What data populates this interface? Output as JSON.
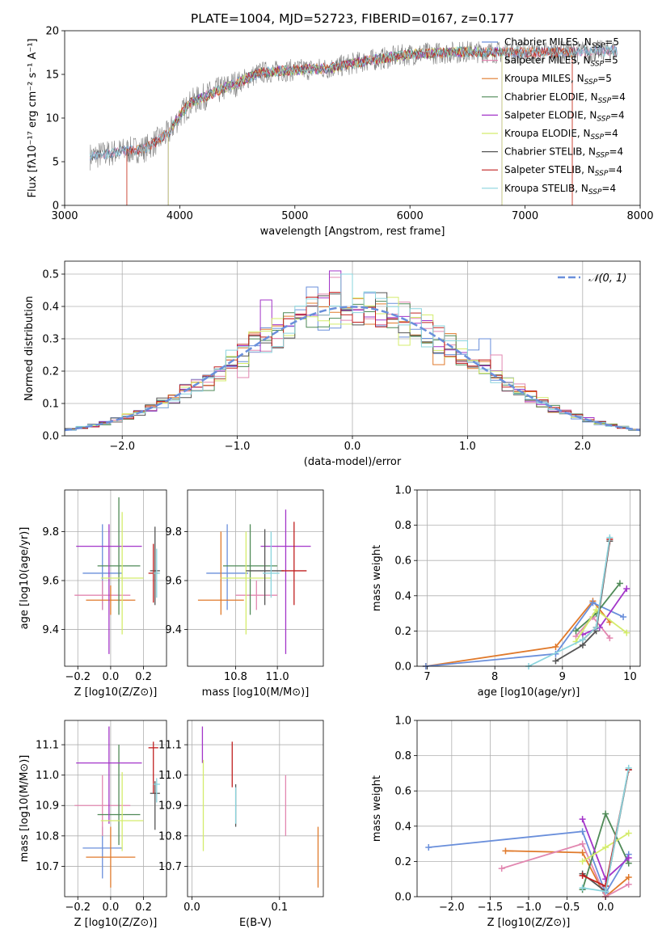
{
  "figure": {
    "title": "PLATE=1004, MJD=52723, FIBERID=0167, z=0.177"
  },
  "palette": {
    "spectrum": "#808080",
    "chabrier_miles": "#6a8fdb",
    "salpeter_miles": "#e287b0",
    "kroupa_miles": "#e07a2c",
    "chabrier_elodie": "#4f8a57",
    "salpeter_elodie": "#a335c9",
    "kroupa_elodie": "#d4ec6c",
    "chabrier_stelib": "#555555",
    "salpeter_stelib": "#c02020",
    "kroupa_stelib": "#8ad4dd",
    "gaussian": "#6a8fdb"
  },
  "legend_models": [
    {
      "key": "chabrier_miles",
      "text": "Chabrier MILES, N",
      "sub": "SSP",
      "tail": "=5"
    },
    {
      "key": "salpeter_miles",
      "text": "Salpeter MILES, N",
      "sub": "SSP",
      "tail": "=5"
    },
    {
      "key": "kroupa_miles",
      "text": "Kroupa MILES, N",
      "sub": "SSP",
      "tail": "=5"
    },
    {
      "key": "chabrier_elodie",
      "text": "Chabrier ELODIE, N",
      "sub": "SSP",
      "tail": "=4"
    },
    {
      "key": "salpeter_elodie",
      "text": "Salpeter ELODIE, N",
      "sub": "SSP",
      "tail": "=4"
    },
    {
      "key": "kroupa_elodie",
      "text": "Kroupa ELODIE, N",
      "sub": "SSP",
      "tail": "=4"
    },
    {
      "key": "chabrier_stelib",
      "text": "Chabrier STELIB, N",
      "sub": "SSP",
      "tail": "=4"
    },
    {
      "key": "salpeter_stelib",
      "text": "Salpeter STELIB, N",
      "sub": "SSP",
      "tail": "=4"
    },
    {
      "key": "kroupa_stelib",
      "text": "Kroupa STELIB, N",
      "sub": "SSP",
      "tail": "=4"
    }
  ],
  "chart_data": [
    {
      "id": "spectrum",
      "type": "line",
      "xlabel": "wavelength [Angstrom, rest frame]",
      "ylabel": "Flux [fλ10⁻¹⁷ erg cm⁻² s⁻¹ A⁻¹]",
      "xlim": [
        3000,
        8000
      ],
      "ylim": [
        0,
        20
      ],
      "xticks": [
        3000,
        4000,
        5000,
        6000,
        7000,
        8000
      ],
      "yticks": [
        0,
        5,
        10,
        15,
        20
      ],
      "legend": "top-right",
      "grid": false,
      "data_start": 3220,
      "data_end": 7800,
      "continuum": [
        [
          3220,
          5.6
        ],
        [
          3500,
          6.2
        ],
        [
          3700,
          6.5
        ],
        [
          3900,
          8.2
        ],
        [
          4000,
          10.3
        ],
        [
          4100,
          11.8
        ],
        [
          4400,
          13.5
        ],
        [
          4700,
          15.2
        ],
        [
          5000,
          15.5
        ],
        [
          5300,
          15.7
        ],
        [
          5600,
          16.5
        ],
        [
          6000,
          17.3
        ],
        [
          6500,
          17.6
        ],
        [
          7000,
          17.5
        ],
        [
          7500,
          17.6
        ],
        [
          7800,
          17.7
        ]
      ],
      "model_cutoffs": [
        {
          "key": "kroupa_miles",
          "start": 3540,
          "end": 7410
        },
        {
          "key": "salpeter_stelib",
          "start": 3540,
          "end": 7410
        },
        {
          "key": "kroupa_elodie",
          "start": 3900,
          "end": 6800
        },
        {
          "key": "salpeter_elodie",
          "start": 3900,
          "end": 6800
        },
        {
          "key": "chabrier_elodie",
          "start": 3900,
          "end": 6800
        }
      ]
    },
    {
      "id": "residuals",
      "type": "histogram",
      "xlabel": "(data-model)/error",
      "ylabel": "Normed distribution",
      "xlim": [
        -2.5,
        2.5
      ],
      "ylim": [
        0,
        0.54
      ],
      "xticks": [
        -2,
        -1,
        0,
        1,
        2
      ],
      "yticks": [
        0.0,
        0.1,
        0.2,
        0.3,
        0.4,
        0.5
      ],
      "grid": true,
      "bin_width": 0.1,
      "gaussian_label": "𝒩(0, 1)",
      "spike_bins": [
        {
          "key": "chabrier_miles",
          "x": -0.4,
          "height": 0.46
        },
        {
          "key": "salpeter_elodie",
          "x": -0.2,
          "height": 0.51
        },
        {
          "key": "salpeter_miles",
          "x": -0.2,
          "height": 0.49
        },
        {
          "key": "kroupa_stelib",
          "x": -0.1,
          "height": 0.5
        },
        {
          "key": "chabrier_miles",
          "x": -0.1,
          "height": 0.5
        },
        {
          "key": "salpeter_elodie",
          "x": -0.8,
          "height": 0.42
        },
        {
          "key": "salpeter_miles",
          "x": -1.0,
          "height": 0.18
        },
        {
          "key": "chabrier_miles",
          "x": 0.2,
          "height": 0.34
        },
        {
          "key": "kroupa_elodie",
          "x": 0.4,
          "height": 0.28
        },
        {
          "key": "chabrier_miles",
          "x": 1.1,
          "height": 0.3
        },
        {
          "key": "kroupa_miles",
          "x": 0.7,
          "height": 0.22
        },
        {
          "key": "salpeter_miles",
          "x": 1.2,
          "height": 0.25
        },
        {
          "key": "kroupa_elodie",
          "x": -1.2,
          "height": 0.17
        },
        {
          "key": "chabrier_elodie",
          "x": -1.3,
          "height": 0.14
        }
      ]
    },
    {
      "id": "z_age",
      "type": "errorbar",
      "xlabel": "Z [log10(Z/Z⊙)]",
      "ylabel": "age  [log10(age/yr)]",
      "xlim": [
        -0.28,
        0.34
      ],
      "ylim": [
        9.25,
        9.97
      ],
      "xticks": [
        -0.2,
        0.0,
        0.2
      ],
      "yticks": [
        9.4,
        9.6,
        9.8
      ],
      "grid": true,
      "points": [
        {
          "key": "chabrier_miles",
          "x": -0.05,
          "xerr": 0.12,
          "y": 9.63,
          "yerr": [
            0.15,
            0.2
          ]
        },
        {
          "key": "salpeter_miles",
          "x": -0.05,
          "xerr": 0.17,
          "y": 9.54,
          "yerr": [
            0.06,
            0.06
          ]
        },
        {
          "key": "kroupa_miles",
          "x": 0.0,
          "xerr": 0.15,
          "y": 9.52,
          "yerr": [
            0.06,
            0.06
          ]
        },
        {
          "key": "chabrier_elodie",
          "x": 0.05,
          "xerr": 0.13,
          "y": 9.66,
          "yerr": [
            0.2,
            0.28
          ]
        },
        {
          "key": "salpeter_elodie",
          "x": -0.01,
          "xerr": 0.2,
          "y": 9.74,
          "yerr": [
            0.44,
            0.09
          ]
        },
        {
          "key": "kroupa_elodie",
          "x": 0.07,
          "xerr": 0.13,
          "y": 9.61,
          "yerr": [
            0.23,
            0.27
          ]
        },
        {
          "key": "chabrier_stelib",
          "x": 0.27,
          "xerr": 0.03,
          "y": 9.64,
          "yerr": [
            0.14,
            0.18
          ]
        },
        {
          "key": "salpeter_stelib",
          "x": 0.26,
          "xerr": 0.03,
          "y": 9.63,
          "yerr": [
            0.12,
            0.12
          ]
        },
        {
          "key": "kroupa_stelib",
          "x": 0.28,
          "xerr": 0.02,
          "y": 9.63,
          "yerr": [
            0.1,
            0.1
          ]
        }
      ]
    },
    {
      "id": "mass_age",
      "type": "errorbar",
      "xlabel": "mass [log10(M/M⊙)]",
      "ylabel": "",
      "xlim": [
        10.57,
        11.22
      ],
      "ylim": [
        9.25,
        9.97
      ],
      "xticks": [
        10.8,
        11.0
      ],
      "yticks": [
        9.4,
        9.6,
        9.8
      ],
      "grid": true,
      "points": [
        {
          "key": "chabrier_miles",
          "x": 10.76,
          "xerr": 0.1,
          "y": 9.63,
          "yerr": [
            0.15,
            0.2
          ]
        },
        {
          "key": "salpeter_miles",
          "x": 10.9,
          "xerr": 0.1,
          "y": 9.54,
          "yerr": [
            0.06,
            0.06
          ]
        },
        {
          "key": "kroupa_miles",
          "x": 10.73,
          "xerr": 0.11,
          "y": 9.52,
          "yerr": [
            0.06,
            0.28
          ]
        },
        {
          "key": "chabrier_elodie",
          "x": 10.87,
          "xerr": 0.13,
          "y": 9.66,
          "yerr": [
            0.2,
            0.17
          ]
        },
        {
          "key": "salpeter_elodie",
          "x": 11.04,
          "xerr": 0.12,
          "y": 9.74,
          "yerr": [
            0.44,
            0.15
          ]
        },
        {
          "key": "kroupa_elodie",
          "x": 10.85,
          "xerr": 0.12,
          "y": 9.61,
          "yerr": [
            0.23,
            0.19
          ]
        },
        {
          "key": "chabrier_stelib",
          "x": 10.94,
          "xerr": 0.09,
          "y": 9.64,
          "yerr": [
            0.14,
            0.17
          ]
        },
        {
          "key": "salpeter_stelib",
          "x": 11.08,
          "xerr": 0.06,
          "y": 9.64,
          "yerr": [
            0.14,
            0.2
          ]
        },
        {
          "key": "kroupa_stelib",
          "x": 10.97,
          "xerr": 0.04,
          "y": 9.63,
          "yerr": [
            0.1,
            0.17
          ]
        }
      ]
    },
    {
      "id": "z_mass",
      "type": "errorbar",
      "xlabel": "Z [log10(Z/Z⊙)]",
      "ylabel": "mass [log10(M/M⊙)]",
      "xlim": [
        -0.28,
        0.34
      ],
      "ylim": [
        10.6,
        11.18
      ],
      "xticks": [
        -0.2,
        0.0,
        0.2
      ],
      "yticks": [
        10.7,
        10.8,
        10.9,
        11.0,
        11.1
      ],
      "grid": true,
      "points": [
        {
          "key": "chabrier_miles",
          "x": -0.05,
          "xerr": 0.12,
          "y": 10.76,
          "yerr": [
            0.1,
            0.07
          ]
        },
        {
          "key": "salpeter_miles",
          "x": -0.05,
          "xerr": 0.17,
          "y": 10.9,
          "yerr": [
            0.1,
            0.1
          ]
        },
        {
          "key": "kroupa_miles",
          "x": 0.0,
          "xerr": 0.15,
          "y": 10.73,
          "yerr": [
            0.1,
            0.1
          ]
        },
        {
          "key": "chabrier_elodie",
          "x": 0.05,
          "xerr": 0.13,
          "y": 10.87,
          "yerr": [
            0.1,
            0.23
          ]
        },
        {
          "key": "salpeter_elodie",
          "x": -0.01,
          "xerr": 0.2,
          "y": 11.04,
          "yerr": [
            0.2,
            0.12
          ]
        },
        {
          "key": "kroupa_elodie",
          "x": 0.07,
          "xerr": 0.13,
          "y": 10.85,
          "yerr": [
            0.1,
            0.16
          ]
        },
        {
          "key": "chabrier_stelib",
          "x": 0.27,
          "xerr": 0.03,
          "y": 10.94,
          "yerr": [
            0.12,
            0.04
          ]
        },
        {
          "key": "salpeter_stelib",
          "x": 0.26,
          "xerr": 0.03,
          "y": 11.09,
          "yerr": [
            0.15,
            0.02
          ]
        },
        {
          "key": "kroupa_stelib",
          "x": 0.28,
          "xerr": 0.02,
          "y": 10.97,
          "yerr": [
            0.06,
            0.02
          ]
        }
      ]
    },
    {
      "id": "ebv_mass",
      "type": "errorbar",
      "xlabel": "E(B-V)",
      "ylabel": "",
      "xlim": [
        -0.005,
        0.15
      ],
      "ylim": [
        10.6,
        11.18
      ],
      "xticks": [
        0.0,
        0.1
      ],
      "yticks": [
        10.7,
        10.8,
        10.9,
        11.0,
        11.1
      ],
      "grid": true,
      "points": [
        {
          "key": "salpeter_elodie",
          "x": 0.012,
          "xerr": 0,
          "y": 11.1,
          "yerr": [
            0.06,
            0.06
          ]
        },
        {
          "key": "kroupa_elodie",
          "x": 0.013,
          "xerr": 0,
          "y": 10.9,
          "yerr": [
            0.15,
            0.15
          ]
        },
        {
          "key": "salpeter_stelib",
          "x": 0.046,
          "xerr": 0,
          "y": 11.03,
          "yerr": [
            0.07,
            0.08
          ]
        },
        {
          "key": "chabrier_stelib",
          "x": 0.05,
          "xerr": 0,
          "y": 10.9,
          "yerr": [
            0.07,
            0.07
          ]
        },
        {
          "key": "kroupa_stelib",
          "x": 0.05,
          "xerr": 0,
          "y": 10.9,
          "yerr": [
            0.06,
            0.06
          ]
        },
        {
          "key": "salpeter_miles",
          "x": 0.107,
          "xerr": 0,
          "y": 10.9,
          "yerr": [
            0.1,
            0.1
          ]
        },
        {
          "key": "kroupa_miles",
          "x": 0.144,
          "xerr": 0,
          "y": 10.73,
          "yerr": [
            0.1,
            0.1
          ]
        }
      ]
    },
    {
      "id": "age_weight",
      "type": "line",
      "xlabel": "age  [log10(age/yr)]",
      "ylabel": "mass weight",
      "xlim": [
        6.85,
        10.15
      ],
      "ylim": [
        0,
        1.0
      ],
      "xticks": [
        7,
        8,
        9,
        10
      ],
      "yticks": [
        0.0,
        0.2,
        0.4,
        0.6,
        0.8,
        1.0
      ],
      "grid": true,
      "series": [
        {
          "key": "kroupa_miles",
          "x": [
            6.98,
            8.9,
            9.45,
            9.7
          ],
          "y": [
            0.0,
            0.11,
            0.37,
            0.25
          ]
        },
        {
          "key": "chabrier_miles",
          "x": [
            6.98,
            8.9,
            9.45,
            9.9
          ],
          "y": [
            0.0,
            0.07,
            0.36,
            0.28
          ]
        },
        {
          "key": "salpeter_miles",
          "x": [
            9.2,
            9.45,
            9.7
          ],
          "y": [
            0.17,
            0.28,
            0.16
          ]
        },
        {
          "key": "chabrier_elodie",
          "x": [
            9.2,
            9.5,
            9.85
          ],
          "y": [
            0.2,
            0.3,
            0.47
          ]
        },
        {
          "key": "salpeter_elodie",
          "x": [
            9.3,
            9.55,
            9.95
          ],
          "y": [
            0.18,
            0.22,
            0.44
          ]
        },
        {
          "key": "kroupa_elodie",
          "x": [
            9.2,
            9.5,
            9.95
          ],
          "y": [
            0.14,
            0.32,
            0.19
          ]
        },
        {
          "key": "chabrier_stelib",
          "x": [
            8.9,
            9.3,
            9.5,
            9.7
          ],
          "y": [
            0.03,
            0.12,
            0.2,
            0.71
          ]
        },
        {
          "key": "salpeter_stelib",
          "x": [
            9.3,
            9.5,
            9.7
          ],
          "y": [
            0.15,
            0.22,
            0.72
          ]
        },
        {
          "key": "kroupa_stelib",
          "x": [
            8.5,
            9.3,
            9.5,
            9.7
          ],
          "y": [
            0.0,
            0.15,
            0.22,
            0.73
          ]
        }
      ]
    },
    {
      "id": "z_weight",
      "type": "line",
      "xlabel": "Z [log10(Z/Z⊙)]",
      "ylabel": "mass weight",
      "xlim": [
        -2.45,
        0.45
      ],
      "ylim": [
        0,
        1.0
      ],
      "xticks": [
        -2.0,
        -1.5,
        -1.0,
        -0.5,
        0.0
      ],
      "yticks": [
        0.0,
        0.2,
        0.4,
        0.6,
        0.8,
        1.0
      ],
      "grid": true,
      "series": [
        {
          "key": "chabrier_miles",
          "x": [
            -2.3,
            -0.3,
            0.0,
            0.3
          ],
          "y": [
            0.28,
            0.37,
            0.02,
            0.24
          ]
        },
        {
          "key": "kroupa_miles",
          "x": [
            -1.3,
            -0.3,
            0.0,
            0.3
          ],
          "y": [
            0.26,
            0.25,
            0.0,
            0.11
          ]
        },
        {
          "key": "salpeter_miles",
          "x": [
            -1.35,
            -0.3,
            0.0,
            0.3
          ],
          "y": [
            0.16,
            0.3,
            0.0,
            0.07
          ]
        },
        {
          "key": "chabrier_elodie",
          "x": [
            -0.3,
            0.0,
            0.3
          ],
          "y": [
            0.04,
            0.47,
            0.19
          ]
        },
        {
          "key": "salpeter_elodie",
          "x": [
            -0.3,
            0.0,
            0.3
          ],
          "y": [
            0.44,
            0.1,
            0.22
          ]
        },
        {
          "key": "kroupa_elodie",
          "x": [
            -0.3,
            0.0,
            0.3
          ],
          "y": [
            0.2,
            0.28,
            0.36
          ]
        },
        {
          "key": "chabrier_stelib",
          "x": [
            -0.3,
            0.0,
            0.3
          ],
          "y": [
            0.13,
            0.03,
            0.72
          ]
        },
        {
          "key": "salpeter_stelib",
          "x": [
            -0.3,
            0.0,
            0.3
          ],
          "y": [
            0.12,
            0.06,
            0.72
          ]
        },
        {
          "key": "kroupa_stelib",
          "x": [
            -0.3,
            0.0,
            0.3
          ],
          "y": [
            0.05,
            0.03,
            0.73
          ]
        }
      ]
    }
  ]
}
